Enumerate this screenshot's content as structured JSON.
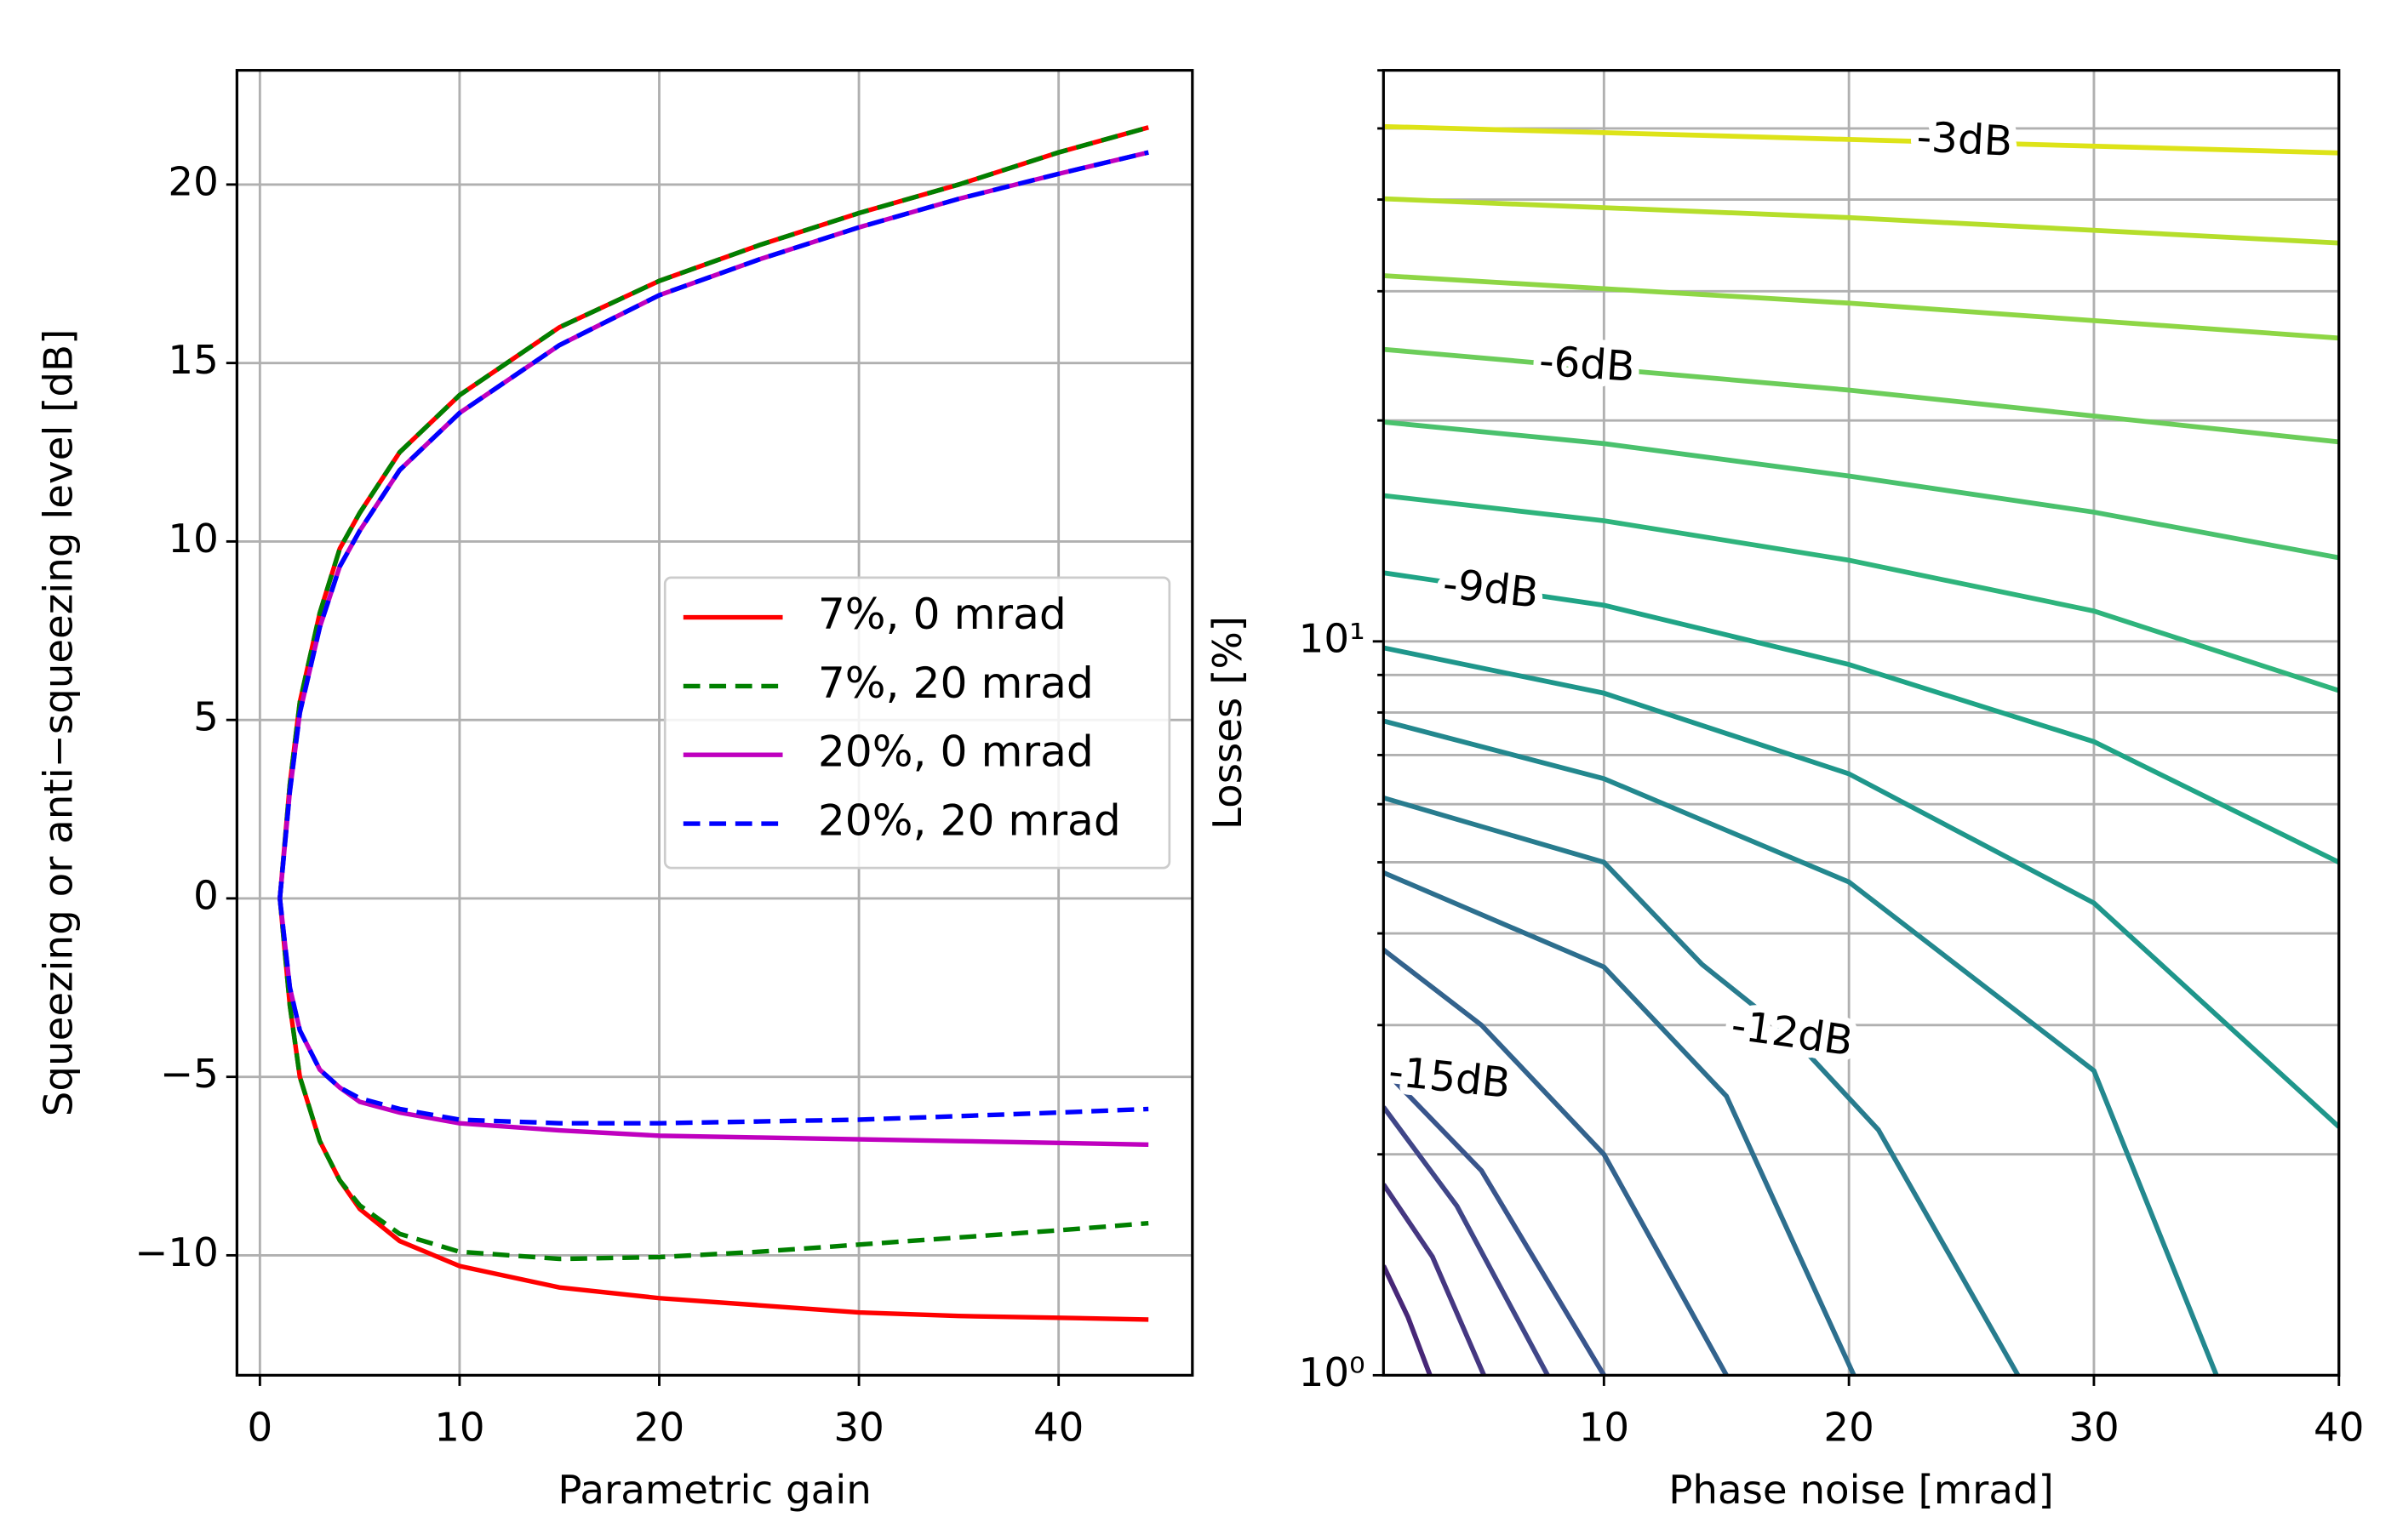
{
  "chart_data": [
    {
      "type": "line",
      "xlabel": "Parametric gain",
      "ylabel": "Squeezing or anti−squeezing level [dB]",
      "xlim": [
        -1.15,
        46.7
      ],
      "ylim": [
        -13.36,
        23.2
      ],
      "xticks": [
        0,
        10,
        20,
        30,
        40
      ],
      "yticks": [
        {
          "value": -10,
          "label": "−10"
        },
        {
          "value": -5,
          "label": "−5"
        },
        0,
        5,
        10,
        15,
        20
      ],
      "grid": true,
      "legend": "right",
      "x": [
        1,
        1.5,
        2,
        3,
        4,
        5,
        7,
        10,
        15,
        20,
        25,
        30,
        35,
        40,
        44.5
      ],
      "series": [
        {
          "name": "7%, 0 mrad",
          "color": "#ff0000",
          "linestyle": "solid",
          "anti_squeezing": [
            0,
            3.2,
            5.5,
            8,
            9.8,
            10.8,
            12.5,
            14.1,
            16.0,
            17.3,
            18.3,
            19.2,
            20.0,
            20.9,
            21.6
          ],
          "squeezing": [
            0,
            -3,
            -5,
            -6.8,
            -7.9,
            -8.7,
            -9.6,
            -10.3,
            -10.9,
            -11.2,
            -11.4,
            -11.6,
            -11.7,
            -11.75,
            -11.8
          ]
        },
        {
          "name": "7%, 20 mrad",
          "color": "#008000",
          "linestyle": "dashed",
          "anti_squeezing": [
            0,
            3.2,
            5.5,
            8,
            9.8,
            10.8,
            12.5,
            14.1,
            16.0,
            17.3,
            18.3,
            19.2,
            20.0,
            20.9,
            21.6
          ],
          "squeezing": [
            0,
            -3,
            -5,
            -6.8,
            -7.9,
            -8.6,
            -9.4,
            -9.9,
            -10.1,
            -10.05,
            -9.9,
            -9.7,
            -9.5,
            -9.3,
            -9.1
          ]
        },
        {
          "name": "20%, 0 mrad",
          "color": "#bf00bf",
          "linestyle": "solid",
          "anti_squeezing": [
            0,
            3.0,
            5.2,
            7.6,
            9.3,
            10.3,
            12.0,
            13.6,
            15.5,
            16.9,
            17.9,
            18.8,
            19.6,
            20.3,
            20.9
          ],
          "squeezing": [
            0,
            -2.5,
            -3.7,
            -4.8,
            -5.3,
            -5.7,
            -6.0,
            -6.3,
            -6.5,
            -6.65,
            -6.7,
            -6.75,
            -6.8,
            -6.85,
            -6.9
          ]
        },
        {
          "name": "20%, 20 mrad",
          "color": "#0000ff",
          "linestyle": "dashed",
          "anti_squeezing": [
            0,
            3.0,
            5.2,
            7.6,
            9.3,
            10.3,
            12.0,
            13.6,
            15.5,
            16.9,
            17.9,
            18.8,
            19.6,
            20.3,
            20.9
          ],
          "squeezing": [
            0,
            -2.5,
            -3.7,
            -4.8,
            -5.3,
            -5.6,
            -5.9,
            -6.2,
            -6.3,
            -6.3,
            -6.25,
            -6.2,
            -6.1,
            -6.0,
            -5.9
          ]
        }
      ]
    },
    {
      "type": "contour",
      "xlabel": "Phase noise [mrad]",
      "ylabel": "Losses [%]",
      "xlim": [
        1,
        40
      ],
      "ylim": [
        1,
        60
      ],
      "yscale": "log",
      "xticks": [
        10,
        20,
        30,
        40
      ],
      "yticks": [
        {
          "value": 1,
          "label": "10⁰"
        },
        {
          "value": 10,
          "label": "10¹"
        }
      ],
      "yminorticks": [
        2,
        3,
        4,
        5,
        6,
        7,
        8,
        9,
        20,
        30,
        40,
        50,
        60
      ],
      "grid": true,
      "contours": [
        {
          "level": -3,
          "label": "-3dB",
          "color": "#dde318",
          "x": [
            1,
            20,
            40
          ],
          "y": [
            50.3,
            48.3,
            46.3
          ]
        },
        {
          "level": -4,
          "color": "#b5de2b",
          "x": [
            1,
            20,
            40
          ],
          "y": [
            40.1,
            37.8,
            34.9
          ]
        },
        {
          "level": -5,
          "color": "#8ed645",
          "x": [
            1,
            20,
            40
          ],
          "y": [
            31.5,
            28.9,
            25.9
          ]
        },
        {
          "level": -6,
          "label": "-6dB",
          "color": "#6ccd5a",
          "x": [
            1,
            20,
            40
          ],
          "y": [
            25.0,
            22.0,
            18.7
          ]
        },
        {
          "level": -7,
          "color": "#4ac16d",
          "x": [
            1,
            10,
            20,
            30,
            40
          ],
          "y": [
            19.9,
            18.6,
            16.8,
            15.0,
            13.0
          ]
        },
        {
          "level": -8,
          "color": "#2fb47c",
          "x": [
            1,
            10,
            20,
            30,
            40
          ],
          "y": [
            15.8,
            14.6,
            12.9,
            11.0,
            8.57
          ]
        },
        {
          "level": -9,
          "label": "-9dB",
          "color": "#20a486",
          "x": [
            1,
            10,
            20,
            30,
            40
          ],
          "y": [
            12.4,
            11.2,
            9.3,
            7.3,
            5.0
          ]
        },
        {
          "level": -10,
          "color": "#1f968b",
          "x": [
            1,
            10,
            20,
            30,
            40
          ],
          "y": [
            9.8,
            8.5,
            6.6,
            4.4,
            2.18
          ]
        },
        {
          "level": -11,
          "color": "#23888e",
          "x": [
            1,
            10,
            20,
            30,
            35
          ],
          "y": [
            7.79,
            6.5,
            4.7,
            2.6,
            1
          ]
        },
        {
          "level": -12,
          "label": "-12dB",
          "color": "#287c8e",
          "x": [
            1,
            10,
            14,
            17.6,
            21.2,
            26.9
          ],
          "y": [
            6.12,
            5.0,
            3.63,
            2.91,
            2.16,
            1
          ]
        },
        {
          "level": -13,
          "color": "#2d6f8e",
          "x": [
            1,
            10,
            15,
            20.2
          ],
          "y": [
            4.84,
            3.6,
            2.4,
            1
          ]
        },
        {
          "level": -14,
          "color": "#33638d",
          "x": [
            1,
            5,
            10,
            15
          ],
          "y": [
            3.8,
            3.0,
            2.0,
            1
          ]
        },
        {
          "level": -15,
          "label": "-15dB",
          "color": "#39558c",
          "x": [
            1,
            5,
            10
          ],
          "y": [
            2.61,
            1.9,
            1
          ]
        },
        {
          "level": -16,
          "color": "#404688",
          "x": [
            1,
            4,
            7.7
          ],
          "y": [
            2.32,
            1.7,
            1
          ]
        },
        {
          "level": -17,
          "color": "#453781",
          "x": [
            1,
            3,
            5.1
          ],
          "y": [
            1.82,
            1.45,
            1
          ]
        },
        {
          "level": -18,
          "color": "#472777",
          "x": [
            1,
            2,
            2.9
          ],
          "y": [
            1.41,
            1.2,
            1
          ]
        }
      ]
    }
  ]
}
